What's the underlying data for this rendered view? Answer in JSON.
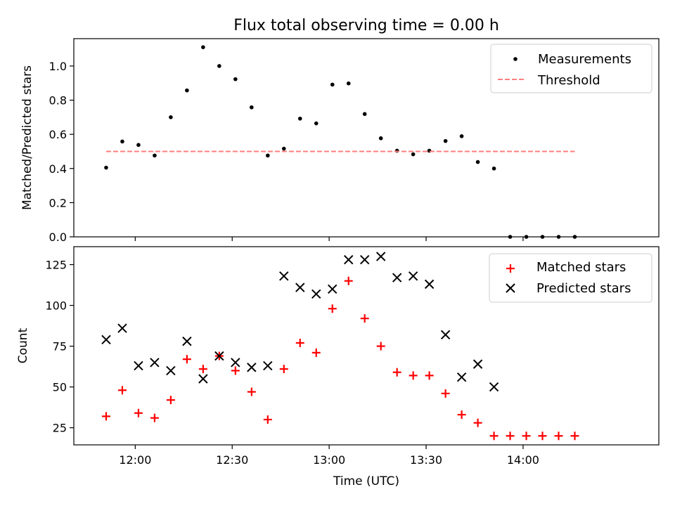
{
  "chart_data": {
    "title": "Flux total observing time = 0.00 h",
    "xlabel": "Time (UTC)",
    "x_tick_labels": [
      "12:00",
      "12:30",
      "13:00",
      "13:30",
      "14:00"
    ],
    "x_ticks": [
      "12:00",
      "12:30",
      "13:00",
      "13:30",
      "14:00"
    ],
    "xlim": [
      "11:41",
      "14:42"
    ],
    "grid": false,
    "x": [
      "11:51",
      "11:56",
      "12:01",
      "12:06",
      "12:11",
      "12:16",
      "12:21",
      "12:26",
      "12:31",
      "12:36",
      "12:41",
      "12:46",
      "12:51",
      "12:56",
      "13:01",
      "13:06",
      "13:11",
      "13:16",
      "13:21",
      "13:26",
      "13:31",
      "13:36",
      "13:41",
      "13:46",
      "13:51",
      "13:56",
      "14:01",
      "14:06",
      "14:11",
      "14:16"
    ],
    "panels": [
      {
        "type": "scatter",
        "ylabel": "Matched/Predicted stars",
        "ylim": [
          0,
          1.16
        ],
        "yticks": [
          0.0,
          0.2,
          0.4,
          0.6,
          0.8,
          1.0
        ],
        "ytick_labels": [
          "0.0",
          "0.2",
          "0.4",
          "0.6",
          "0.8",
          "1.0"
        ],
        "legend_position": "top-right",
        "series": [
          {
            "name": "Measurements",
            "kind": "scatter",
            "marker": "dot",
            "color": "#000000",
            "y": [
              0.405,
              0.558,
              0.538,
              0.476,
              0.7,
              0.857,
              1.11,
              1.0,
              0.923,
              0.758,
              0.476,
              0.516,
              0.692,
              0.664,
              0.891,
              0.898,
              0.719,
              0.577,
              0.504,
              0.483,
              0.504,
              0.561,
              0.589,
              0.438,
              0.4,
              0.0,
              0.0,
              0.0,
              0.0,
              0.0
            ]
          },
          {
            "name": "Threshold",
            "kind": "dashed-line",
            "color": "#ff7f7f",
            "x_range": [
              "11:51",
              "14:16"
            ],
            "y": 0.5
          }
        ]
      },
      {
        "type": "scatter",
        "ylabel": "Count",
        "ylim": [
          14.5,
          136
        ],
        "yticks": [
          25,
          50,
          75,
          100,
          125
        ],
        "ytick_labels": [
          "25",
          "50",
          "75",
          "100",
          "125"
        ],
        "legend_position": "top-right",
        "series": [
          {
            "name": "Matched stars",
            "kind": "scatter",
            "marker": "plus",
            "color": "#ff0000",
            "y": [
              32,
              48,
              34,
              31,
              42,
              67,
              61,
              69,
              60,
              47,
              30,
              61,
              77,
              71,
              98,
              115,
              92,
              75,
              59,
              57,
              57,
              46,
              33,
              28,
              20,
              20,
              20,
              20,
              20,
              20
            ]
          },
          {
            "name": "Predicted stars",
            "kind": "scatter",
            "marker": "x",
            "color": "#000000",
            "y": [
              79,
              86,
              63,
              65,
              60,
              78,
              55,
              69,
              65,
              62,
              63,
              118,
              111,
              107,
              110,
              128,
              128,
              130,
              117,
              118,
              113,
              82,
              56,
              64,
              50,
              null,
              null,
              null,
              null,
              null
            ]
          }
        ]
      }
    ]
  }
}
